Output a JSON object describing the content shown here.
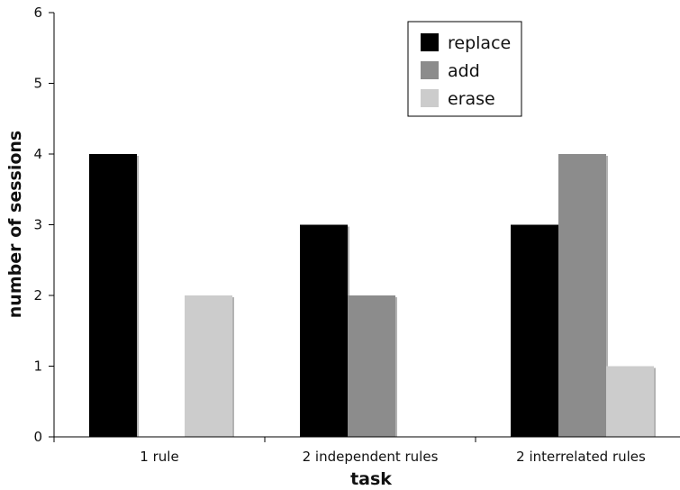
{
  "chart_data": {
    "type": "bar",
    "title": "",
    "xlabel": "task",
    "ylabel": "number of sessions",
    "categories": [
      "1 rule",
      "2 independent rules",
      "2 interrelated rules"
    ],
    "series": [
      {
        "name": "replace",
        "values": [
          4,
          3,
          3
        ],
        "color": "#000000"
      },
      {
        "name": "add",
        "values": [
          0,
          2,
          4
        ],
        "color": "#8c8c8c"
      },
      {
        "name": "erase",
        "values": [
          2,
          0,
          1
        ],
        "color": "#cccccc"
      }
    ],
    "ylim": [
      0,
      6
    ],
    "yticks": [
      "0",
      "1",
      "2",
      "3",
      "4",
      "5",
      "6"
    ],
    "grid": false,
    "legend_position": "top-right"
  }
}
